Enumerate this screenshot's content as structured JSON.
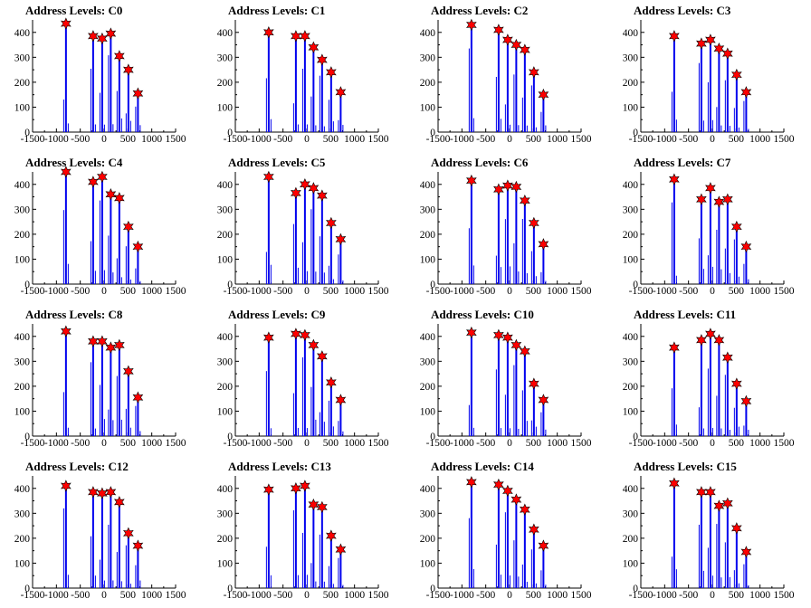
{
  "chart_data": [
    {
      "type": "bar",
      "title": "Address Levels: C0",
      "xlim": [
        -1500,
        1500
      ],
      "ylim": [
        0,
        450
      ],
      "xticks": [
        "-1500",
        "-1000",
        "-500",
        "0",
        "500",
        "1000",
        "1500"
      ],
      "yticks": [
        "0",
        "100",
        "200",
        "300",
        "400"
      ],
      "peaks": {
        "x": [
          -800,
          -230,
          -40,
          140,
          320,
          510,
          710
        ],
        "y": [
          435,
          385,
          375,
          395,
          305,
          250,
          155
        ]
      }
    },
    {
      "type": "bar",
      "title": "Address Levels: C1",
      "xlim": [
        -1500,
        1500
      ],
      "ylim": [
        0,
        450
      ],
      "xticks": [
        "-1500",
        "-1000",
        "-500",
        "0",
        "500",
        "1000",
        "1500"
      ],
      "yticks": [
        "0",
        "100",
        "200",
        "300",
        "400"
      ],
      "peaks": {
        "x": [
          -800,
          -230,
          -40,
          140,
          320,
          510,
          710
        ],
        "y": [
          400,
          385,
          385,
          340,
          290,
          240,
          160
        ]
      }
    },
    {
      "type": "bar",
      "title": "Address Levels: C2",
      "xlim": [
        -1500,
        1500
      ],
      "ylim": [
        0,
        450
      ],
      "xticks": [
        "-1500",
        "-1000",
        "-500",
        "0",
        "500",
        "1000",
        "1500"
      ],
      "yticks": [
        "0",
        "100",
        "200",
        "300",
        "400"
      ],
      "peaks": {
        "x": [
          -800,
          -230,
          -40,
          140,
          320,
          510,
          710
        ],
        "y": [
          430,
          410,
          370,
          350,
          330,
          240,
          150
        ]
      }
    },
    {
      "type": "bar",
      "title": "Address Levels: C3",
      "xlim": [
        -1500,
        1500
      ],
      "ylim": [
        0,
        450
      ],
      "xticks": [
        "-1500",
        "-1000",
        "-500",
        "0",
        "500",
        "1000",
        "1500"
      ],
      "yticks": [
        "0",
        "100",
        "200",
        "300",
        "400"
      ],
      "peaks": {
        "x": [
          -800,
          -230,
          -40,
          140,
          320,
          510,
          710
        ],
        "y": [
          385,
          355,
          370,
          335,
          315,
          230,
          160
        ]
      }
    },
    {
      "type": "bar",
      "title": "Address Levels: C4",
      "xlim": [
        -1500,
        1500
      ],
      "ylim": [
        0,
        450
      ],
      "xticks": [
        "-1500",
        "-1000",
        "-500",
        "0",
        "500",
        "1000",
        "1500"
      ],
      "yticks": [
        "0",
        "100",
        "200",
        "300",
        "400"
      ],
      "peaks": {
        "x": [
          -800,
          -230,
          -40,
          140,
          320,
          510,
          710
        ],
        "y": [
          450,
          410,
          430,
          360,
          345,
          230,
          150
        ]
      }
    },
    {
      "type": "bar",
      "title": "Address Levels: C5",
      "xlim": [
        -1500,
        1500
      ],
      "ylim": [
        0,
        450
      ],
      "xticks": [
        "-1500",
        "-1000",
        "-500",
        "0",
        "500",
        "1000",
        "1500"
      ],
      "yticks": [
        "0",
        "100",
        "200",
        "300",
        "400"
      ],
      "peaks": {
        "x": [
          -800,
          -230,
          -40,
          140,
          320,
          510,
          710
        ],
        "y": [
          430,
          365,
          400,
          385,
          355,
          245,
          180
        ]
      }
    },
    {
      "type": "bar",
      "title": "Address Levels: C6",
      "xlim": [
        -1500,
        1500
      ],
      "ylim": [
        0,
        450
      ],
      "xticks": [
        "-1500",
        "-1000",
        "-500",
        "0",
        "500",
        "1000",
        "1500"
      ],
      "yticks": [
        "0",
        "100",
        "200",
        "300",
        "400"
      ],
      "peaks": {
        "x": [
          -800,
          -230,
          -40,
          140,
          320,
          510,
          710
        ],
        "y": [
          415,
          380,
          395,
          390,
          335,
          245,
          160
        ]
      }
    },
    {
      "type": "bar",
      "title": "Address Levels: C7",
      "xlim": [
        -1500,
        1500
      ],
      "ylim": [
        0,
        450
      ],
      "xticks": [
        "-1500",
        "-1000",
        "-500",
        "0",
        "500",
        "1000",
        "1500"
      ],
      "yticks": [
        "0",
        "100",
        "200",
        "300",
        "400"
      ],
      "peaks": {
        "x": [
          -800,
          -230,
          -40,
          140,
          320,
          510,
          710
        ],
        "y": [
          420,
          340,
          385,
          330,
          340,
          230,
          150
        ]
      }
    },
    {
      "type": "bar",
      "title": "Address Levels: C8",
      "xlim": [
        -1500,
        1500
      ],
      "ylim": [
        0,
        450
      ],
      "xticks": [
        "-1500",
        "-1000",
        "-500",
        "0",
        "500",
        "1000",
        "1500"
      ],
      "yticks": [
        "0",
        "100",
        "200",
        "300",
        "400"
      ],
      "peaks": {
        "x": [
          -800,
          -230,
          -40,
          140,
          320,
          510,
          710
        ],
        "y": [
          420,
          380,
          380,
          355,
          365,
          260,
          155
        ]
      }
    },
    {
      "type": "bar",
      "title": "Address Levels: C9",
      "xlim": [
        -1500,
        1500
      ],
      "ylim": [
        0,
        450
      ],
      "xticks": [
        "-1500",
        "-1000",
        "-500",
        "0",
        "500",
        "1000",
        "1500"
      ],
      "yticks": [
        "0",
        "100",
        "200",
        "300",
        "400"
      ],
      "peaks": {
        "x": [
          -800,
          -230,
          -40,
          140,
          320,
          510,
          710
        ],
        "y": [
          395,
          410,
          405,
          365,
          320,
          215,
          145
        ]
      }
    },
    {
      "type": "bar",
      "title": "Address Levels: C10",
      "xlim": [
        -1500,
        1500
      ],
      "ylim": [
        0,
        450
      ],
      "xticks": [
        "-1500",
        "-1000",
        "-500",
        "0",
        "500",
        "1000",
        "1500"
      ],
      "yticks": [
        "0",
        "100",
        "200",
        "300",
        "400"
      ],
      "peaks": {
        "x": [
          -800,
          -230,
          -40,
          140,
          320,
          510,
          710
        ],
        "y": [
          415,
          405,
          395,
          365,
          340,
          210,
          145
        ]
      }
    },
    {
      "type": "bar",
      "title": "Address Levels: C11",
      "xlim": [
        -1500,
        1500
      ],
      "ylim": [
        0,
        450
      ],
      "xticks": [
        "-1500",
        "-1000",
        "-500",
        "0",
        "500",
        "1000",
        "1500"
      ],
      "yticks": [
        "0",
        "100",
        "200",
        "300",
        "400"
      ],
      "peaks": {
        "x": [
          -800,
          -230,
          -40,
          140,
          320,
          510,
          710
        ],
        "y": [
          355,
          385,
          410,
          385,
          315,
          210,
          140
        ]
      }
    },
    {
      "type": "bar",
      "title": "Address Levels: C12",
      "xlim": [
        -1500,
        1500
      ],
      "ylim": [
        0,
        450
      ],
      "xticks": [
        "-1500",
        "-1000",
        "-500",
        "0",
        "500",
        "1000",
        "1500"
      ],
      "yticks": [
        "0",
        "100",
        "200",
        "300",
        "400"
      ],
      "peaks": {
        "x": [
          -800,
          -230,
          -40,
          140,
          320,
          510,
          710
        ],
        "y": [
          410,
          385,
          380,
          385,
          345,
          220,
          170
        ]
      }
    },
    {
      "type": "bar",
      "title": "Address Levels: C13",
      "xlim": [
        -1500,
        1500
      ],
      "ylim": [
        0,
        450
      ],
      "xticks": [
        "-1500",
        "-1000",
        "-500",
        "0",
        "500",
        "1000",
        "1500"
      ],
      "yticks": [
        "0",
        "100",
        "200",
        "300",
        "400"
      ],
      "peaks": {
        "x": [
          -800,
          -230,
          -40,
          140,
          320,
          510,
          710
        ],
        "y": [
          395,
          400,
          410,
          335,
          325,
          210,
          155
        ]
      }
    },
    {
      "type": "bar",
      "title": "Address Levels: C14",
      "xlim": [
        -1500,
        1500
      ],
      "ylim": [
        0,
        450
      ],
      "xticks": [
        "-1500",
        "-1000",
        "-500",
        "0",
        "500",
        "1000",
        "1500"
      ],
      "yticks": [
        "0",
        "100",
        "200",
        "300",
        "400"
      ],
      "peaks": {
        "x": [
          -800,
          -230,
          -40,
          140,
          320,
          510,
          710
        ],
        "y": [
          425,
          415,
          390,
          355,
          315,
          235,
          170
        ]
      }
    },
    {
      "type": "bar",
      "title": "Address Levels: C15",
      "xlim": [
        -1500,
        1500
      ],
      "ylim": [
        0,
        450
      ],
      "xticks": [
        "-1500",
        "-1000",
        "-500",
        "0",
        "500",
        "1000",
        "1500"
      ],
      "yticks": [
        "0",
        "100",
        "200",
        "300",
        "400"
      ],
      "peaks": {
        "x": [
          -800,
          -230,
          -40,
          140,
          320,
          510,
          710
        ],
        "y": [
          420,
          385,
          385,
          330,
          340,
          240,
          145
        ]
      }
    }
  ],
  "colors": {
    "bar": "#0000ee",
    "marker": "#ff0000",
    "marker_outline": "#000000",
    "axis": "#000000"
  }
}
